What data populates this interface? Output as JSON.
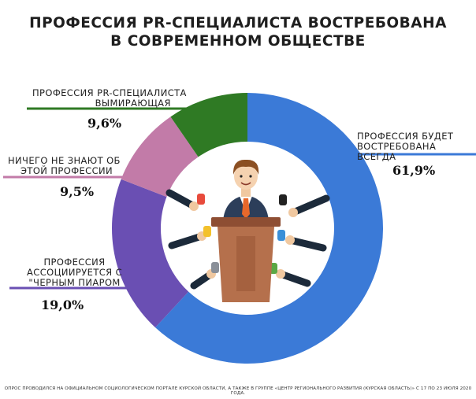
{
  "chart_data": {
    "type": "pie",
    "title_lines": [
      "ПРОФЕССИЯ PR-СПЕЦИАЛИСТА ВОСТРЕБОВАНА",
      "В СОВРЕМЕННОМ ОБЩЕСТВЕ"
    ],
    "slices": [
      {
        "label_lines": [
          "ПРОФЕССИЯ БУДЕТ",
          "ВОСТРЕБОВАНА ВСЕГДА"
        ],
        "value": 61.9,
        "value_label": "61,9%",
        "color": "#3b7ad7"
      },
      {
        "label_lines": [
          "ПРОФЕССИЯ",
          "АССОЦИИРУЕТСЯ С",
          "\"ЧЕРНЫМ ПИАРОМ"
        ],
        "value": 19.0,
        "value_label": "19,0%",
        "color": "#6a4fb3"
      },
      {
        "label_lines": [
          "НИЧЕГО НЕ ЗНАЮТ ОБ",
          "ЭТОЙ ПРОФЕССИИ"
        ],
        "value": 9.5,
        "value_label": "9,5%",
        "color": "#c27ba8"
      },
      {
        "label_lines": [
          "ПРОФЕССИЯ PR-СПЕЦИАЛИСТА",
          "ВЫМИРАЮЩАЯ"
        ],
        "value": 9.6,
        "value_label": "9,6%",
        "color": "#2f7a24"
      }
    ],
    "donut": true
  },
  "footnote": "ОПРОС ПРОВОДИЛСЯ НА ОФИЦИАЛЬНОМ СОЦИОЛОГИЧЕСКОМ ПОРТАЛЕ КУРСКОЙ ОБЛАСТИ, А ТАКЖЕ В ГРУППЕ «ЦЕНТР РЕГИОНАЛЬНОГО РАЗВИТИЯ (КУРСКАЯ ОБЛАСТЬ)» С 17 ПО 23 ИЮЛЯ 2020 ГОДА.",
  "illustration": {
    "name": "speaker-at-podium-with-microphones-icon"
  }
}
